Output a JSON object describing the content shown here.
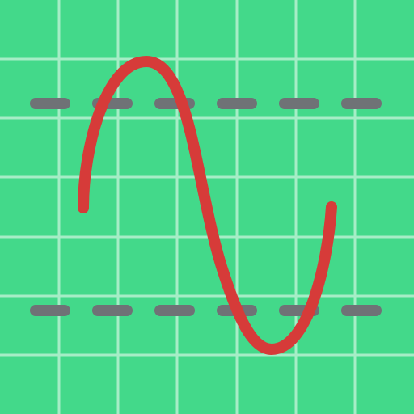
{
  "icon": {
    "name": "sine-wave-oscilloscope-icon",
    "colors": {
      "background": "#43D98A",
      "grid": "#A6EDC6",
      "dashed_limit": "#6F7276",
      "wave": "#D63B39"
    },
    "grid_cells_per_side": 7
  }
}
